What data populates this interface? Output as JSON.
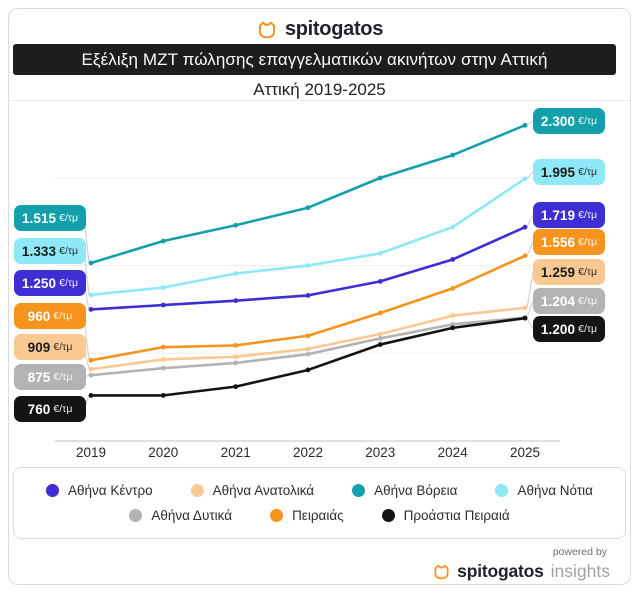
{
  "header": {
    "brand": "spitogatos",
    "title": "Εξέλιξη ΜΖΤ πώλησης επαγγελματικών ακινήτων στην Αττική",
    "subtitle": "Αττική 2019-2025"
  },
  "chart_data": {
    "type": "line",
    "title": "Εξέλιξη ΜΖΤ πώλησης επαγγελματικών ακινήτων στην Αττική",
    "subtitle": "Αττική 2019-2025",
    "xlabel": "",
    "ylabel": "€/τμ",
    "unit": "€/τμ",
    "categories": [
      "2019",
      "2020",
      "2021",
      "2022",
      "2023",
      "2024",
      "2025"
    ],
    "ylim": [
      500,
      2444
    ],
    "gridlines": [
      1000,
      1500,
      2000
    ],
    "grid": true,
    "legend_position": "bottom",
    "series": [
      {
        "name": "Αθήνα Βόρεια",
        "color": "#14A0AB",
        "text_color": "#FFFFFF",
        "values": [
          1515,
          1640,
          1730,
          1830,
          2000,
          2130,
          2300
        ],
        "start_label": "1.515",
        "end_label": "2.300"
      },
      {
        "name": "Αθήνα Νότια",
        "color": "#8EE8F6",
        "text_color": "#1C1C1C",
        "values": [
          1333,
          1375,
          1455,
          1500,
          1570,
          1720,
          1995
        ],
        "start_label": "1.333",
        "end_label": "1.995"
      },
      {
        "name": "Αθήνα Κέντρο",
        "color": "#3E2ED4",
        "text_color": "#FFFFFF",
        "values": [
          1250,
          1275,
          1300,
          1330,
          1410,
          1535,
          1719
        ],
        "start_label": "1.250",
        "end_label": "1.719"
      },
      {
        "name": "Πειραιάς",
        "color": "#F7941D",
        "text_color": "#FFFFFF",
        "values": [
          960,
          1035,
          1045,
          1100,
          1230,
          1370,
          1556
        ],
        "start_label": "960",
        "end_label": "1.556"
      },
      {
        "name": "Αθήνα Ανατολικά",
        "color": "#FAC892",
        "text_color": "#1C1C1C",
        "values": [
          909,
          965,
          980,
          1025,
          1110,
          1215,
          1259
        ],
        "start_label": "909",
        "end_label": "1.259"
      },
      {
        "name": "Αθήνα Δυτικά",
        "color": "#B3B3B3",
        "text_color": "#FFFFFF",
        "values": [
          875,
          915,
          945,
          995,
          1085,
          1165,
          1204
        ],
        "start_label": "875",
        "end_label": "1.204"
      },
      {
        "name": "Προάστια Πειραιά",
        "color": "#141414",
        "text_color": "#FFFFFF",
        "values": [
          760,
          760,
          810,
          905,
          1050,
          1145,
          1200
        ],
        "start_label": "760",
        "end_label": "1.200"
      }
    ],
    "legend_rows": [
      [
        2,
        4,
        0,
        1
      ],
      [
        5,
        3,
        6
      ]
    ]
  },
  "footer": {
    "powered_by": "powered by",
    "brand": "spitogatos",
    "brand_suffix": "insights"
  },
  "colors": {
    "brand_orange": "#F7941D",
    "title_bar_bg": "#1D1D1F",
    "grid": "#EDEDED",
    "axis": "#D6D6D6",
    "connector": "#CBCBCB"
  }
}
